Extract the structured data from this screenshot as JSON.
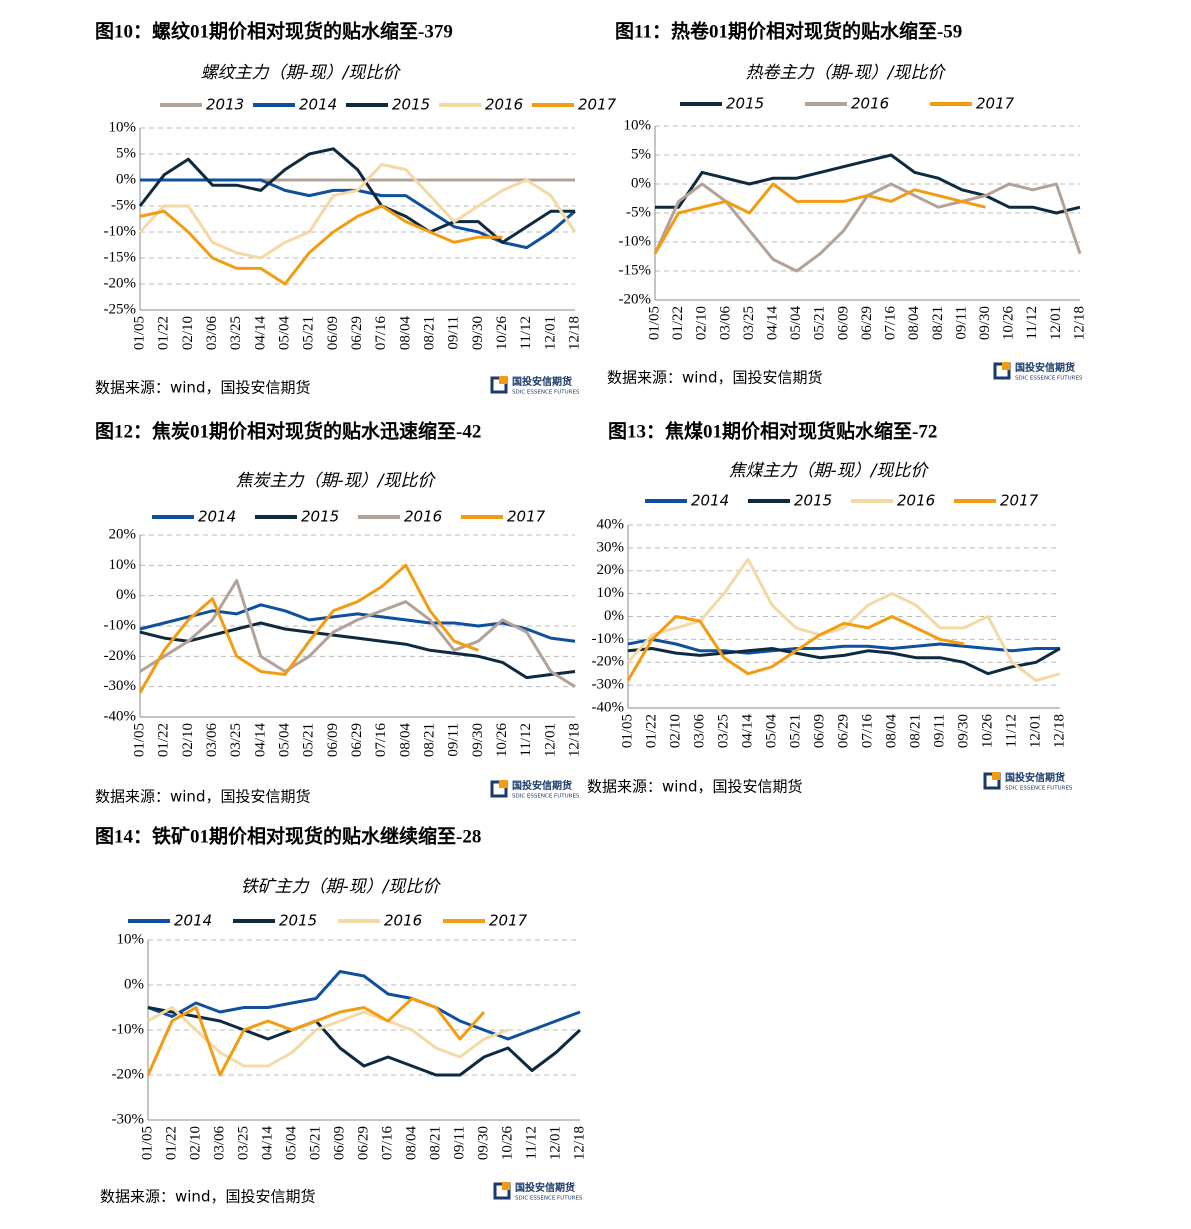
{
  "logo": {
    "name": "国投安信期货",
    "english": "SDIC ESSENCE FUTURES"
  },
  "chart_data": [
    {
      "type": "line",
      "caption": "图10：螺纹01期价相对现货的贴水缩至-379",
      "title": "螺纹主力（期-现）/现比价",
      "source": "数据来源：wind，国投安信期货",
      "categories": [
        "01/05",
        "01/22",
        "02/10",
        "03/06",
        "03/25",
        "04/14",
        "05/04",
        "05/21",
        "06/09",
        "06/29",
        "07/16",
        "08/04",
        "08/21",
        "09/11",
        "09/30",
        "10/26",
        "11/12",
        "12/01",
        "12/18"
      ],
      "ylim": [
        -25,
        10
      ],
      "grid": true,
      "yticks": [
        {
          "value": 10,
          "label": "10%"
        },
        {
          "value": 5,
          "label": "5%"
        },
        {
          "value": 0,
          "label": "0%"
        },
        {
          "value": -5,
          "label": "-5%"
        },
        {
          "value": -10,
          "label": "-10%"
        },
        {
          "value": -15,
          "label": "-15%"
        },
        {
          "value": -20,
          "label": "-20%"
        },
        {
          "value": -25,
          "label": "-25%"
        }
      ],
      "series": [
        {
          "name": "2013",
          "color": "#b3a297",
          "values": [
            0,
            0,
            0,
            0,
            0,
            0,
            0,
            0,
            0,
            0,
            0,
            0,
            0,
            0,
            0,
            0,
            0,
            0,
            0
          ]
        },
        {
          "name": "2014",
          "color": "#0e4f9e",
          "values": [
            0,
            0,
            0,
            0,
            0,
            0,
            -2,
            -3,
            -2,
            -2,
            -3,
            -3,
            -6,
            -9,
            -10,
            -12,
            -13,
            -10,
            -6
          ]
        },
        {
          "name": "2015",
          "color": "#0d2a3f",
          "values": [
            -5,
            1,
            4,
            -1,
            -1,
            -2,
            2,
            5,
            6,
            2,
            -5,
            -7,
            -10,
            -8,
            -8,
            -12,
            -9,
            -6,
            -6
          ]
        },
        {
          "name": "2016",
          "color": "#f3d9a4",
          "values": [
            -10,
            -5,
            -5,
            -12,
            -14,
            -15,
            -12,
            -10,
            -3,
            -2,
            3,
            2,
            -3,
            -8,
            -5,
            -2,
            0,
            -3,
            -10
          ]
        },
        {
          "name": "2017",
          "color": "#f39c12",
          "values": [
            -7,
            -6,
            -10,
            -15,
            -17,
            -17,
            -20,
            -14,
            -10,
            -7,
            -5,
            -8,
            -10,
            -12,
            -11,
            -11,
            null,
            null,
            null
          ]
        }
      ]
    },
    {
      "type": "line",
      "caption": "图11：热卷01期价相对现货的贴水缩至-59",
      "title": "热卷主力（期-现）/现比价",
      "source": "数据来源：wind，国投安信期货",
      "categories": [
        "01/05",
        "01/22",
        "02/10",
        "03/06",
        "03/25",
        "04/14",
        "05/04",
        "05/21",
        "06/09",
        "06/29",
        "07/16",
        "08/04",
        "08/21",
        "09/11",
        "09/30",
        "10/26",
        "11/12",
        "12/01",
        "12/18"
      ],
      "ylim": [
        -20,
        10
      ],
      "grid": true,
      "yticks": [
        {
          "value": 10,
          "label": "10%"
        },
        {
          "value": 5,
          "label": "5%"
        },
        {
          "value": 0,
          "label": "0%"
        },
        {
          "value": -5,
          "label": "-5%"
        },
        {
          "value": -10,
          "label": "-10%"
        },
        {
          "value": -15,
          "label": "-15%"
        },
        {
          "value": -20,
          "label": "-20%"
        }
      ],
      "series": [
        {
          "name": "2015",
          "color": "#0d2a3f",
          "values": [
            -4,
            -4,
            2,
            1,
            0,
            1,
            1,
            2,
            3,
            4,
            5,
            2,
            1,
            -1,
            -2,
            -4,
            -4,
            -5,
            -4
          ]
        },
        {
          "name": "2016",
          "color": "#b3a297",
          "values": [
            -12,
            -3,
            0,
            -3,
            -8,
            -13,
            -15,
            -12,
            -8,
            -2,
            0,
            -2,
            -4,
            -3,
            -2,
            0,
            -1,
            0,
            -12
          ]
        },
        {
          "name": "2017",
          "color": "#f39c12",
          "values": [
            -12,
            -5,
            -4,
            -3,
            -5,
            0,
            -3,
            -3,
            -3,
            -2,
            -3,
            -1,
            -2,
            -3,
            -4,
            null,
            null,
            null,
            null
          ]
        }
      ]
    },
    {
      "type": "line",
      "caption": "图12：焦炭01期价相对现货的贴水迅速缩至-42",
      "title": "焦炭主力（期-现）/现比价",
      "source": "数据来源：wind，国投安信期货",
      "categories": [
        "01/05",
        "01/22",
        "02/10",
        "03/06",
        "03/25",
        "04/14",
        "05/04",
        "05/21",
        "06/09",
        "06/29",
        "07/16",
        "08/04",
        "08/21",
        "09/11",
        "09/30",
        "10/26",
        "11/12",
        "12/01",
        "12/18"
      ],
      "ylim": [
        -40,
        20
      ],
      "grid": true,
      "yticks": [
        {
          "value": 20,
          "label": "20%"
        },
        {
          "value": 10,
          "label": "10%"
        },
        {
          "value": 0,
          "label": "0%"
        },
        {
          "value": -10,
          "label": "-10%"
        },
        {
          "value": -20,
          "label": "-20%"
        },
        {
          "value": -30,
          "label": "-30%"
        },
        {
          "value": -40,
          "label": "-40%"
        }
      ],
      "series": [
        {
          "name": "2014",
          "color": "#0e4f9e",
          "values": [
            -11,
            -9,
            -7,
            -5,
            -6,
            -3,
            -5,
            -8,
            -7,
            -6,
            -7,
            -8,
            -9,
            -9,
            -10,
            -9,
            -11,
            -14,
            -15
          ]
        },
        {
          "name": "2015",
          "color": "#0d2a3f",
          "values": [
            -12,
            -14,
            -15,
            -13,
            -11,
            -9,
            -11,
            -12,
            -13,
            -14,
            -15,
            -16,
            -18,
            -19,
            -20,
            -22,
            -27,
            -26,
            -25
          ]
        },
        {
          "name": "2016",
          "color": "#b3a297",
          "values": [
            -25,
            -20,
            -15,
            -8,
            5,
            -20,
            -25,
            -20,
            -12,
            -8,
            -5,
            -2,
            -8,
            -18,
            -15,
            -8,
            -12,
            -25,
            -30
          ]
        },
        {
          "name": "2017",
          "color": "#f39c12",
          "values": [
            -32,
            -18,
            -8,
            -1,
            -20,
            -25,
            -26,
            -15,
            -5,
            -2,
            3,
            10,
            -5,
            -15,
            -18,
            null,
            null,
            null,
            null
          ]
        }
      ]
    },
    {
      "type": "line",
      "caption": "图13：焦煤01期价相对现货贴水缩至-72",
      "title": "焦煤主力（期-现）/现比价",
      "source": "数据来源：wind，国投安信期货",
      "categories": [
        "01/05",
        "01/22",
        "02/10",
        "03/06",
        "03/25",
        "04/14",
        "05/04",
        "05/21",
        "06/09",
        "06/29",
        "07/16",
        "08/04",
        "08/21",
        "09/11",
        "09/30",
        "10/26",
        "11/12",
        "12/01",
        "12/18"
      ],
      "ylim": [
        -40,
        40
      ],
      "grid": true,
      "yticks": [
        {
          "value": 40,
          "label": "40%"
        },
        {
          "value": 30,
          "label": "30%"
        },
        {
          "value": 20,
          "label": "20%"
        },
        {
          "value": 10,
          "label": "10%"
        },
        {
          "value": 0,
          "label": "0%"
        },
        {
          "value": -10,
          "label": "-10%"
        },
        {
          "value": -20,
          "label": "-20%"
        },
        {
          "value": -30,
          "label": "-30%"
        },
        {
          "value": -40,
          "label": "-40%"
        }
      ],
      "series": [
        {
          "name": "2014",
          "color": "#0e4f9e",
          "values": [
            -12,
            -10,
            -12,
            -15,
            -15,
            -16,
            -15,
            -14,
            -14,
            -13,
            -13,
            -14,
            -13,
            -12,
            -13,
            -14,
            -15,
            -14,
            -14
          ]
        },
        {
          "name": "2015",
          "color": "#0d2a3f",
          "values": [
            -15,
            -14,
            -16,
            -17,
            -16,
            -15,
            -14,
            -16,
            -18,
            -17,
            -15,
            -16,
            -18,
            -18,
            -20,
            -25,
            -22,
            -20,
            -14
          ]
        },
        {
          "name": "2016",
          "color": "#f3d9a4",
          "values": [
            -20,
            -8,
            -5,
            -2,
            10,
            25,
            5,
            -5,
            -8,
            -5,
            5,
            10,
            5,
            -5,
            -5,
            0,
            -20,
            -28,
            -25
          ]
        },
        {
          "name": "2017",
          "color": "#f39c12",
          "values": [
            -28,
            -10,
            0,
            -2,
            -18,
            -25,
            -22,
            -15,
            -8,
            -3,
            -5,
            0,
            -5,
            -10,
            -12,
            null,
            null,
            null,
            null
          ]
        }
      ]
    },
    {
      "type": "line",
      "caption": "图14：铁矿01期价相对现货的贴水继续缩至-28",
      "title": "铁矿主力（期-现）/现比价",
      "source": "数据来源：wind，国投安信期货",
      "categories": [
        "01/05",
        "01/22",
        "02/10",
        "03/06",
        "03/25",
        "04/14",
        "05/04",
        "05/21",
        "06/09",
        "06/29",
        "07/16",
        "08/04",
        "08/21",
        "09/11",
        "09/30",
        "10/26",
        "11/12",
        "12/01",
        "12/18"
      ],
      "ylim": [
        -30,
        10
      ],
      "grid": true,
      "yticks": [
        {
          "value": 10,
          "label": "10%"
        },
        {
          "value": 0,
          "label": "0%"
        },
        {
          "value": -10,
          "label": "-10%"
        },
        {
          "value": -20,
          "label": "-20%"
        },
        {
          "value": -30,
          "label": "-30%"
        }
      ],
      "series": [
        {
          "name": "2014",
          "color": "#0e4f9e",
          "values": [
            -5,
            -7,
            -4,
            -6,
            -5,
            -5,
            -4,
            -3,
            3,
            2,
            -2,
            -3,
            -5,
            -8,
            -10,
            -12,
            -10,
            -8,
            -6
          ]
        },
        {
          "name": "2015",
          "color": "#0d2a3f",
          "values": [
            -5,
            -6,
            -7,
            -8,
            -10,
            -12,
            -10,
            -8,
            -14,
            -18,
            -16,
            -18,
            -20,
            -20,
            -16,
            -14,
            -19,
            -15,
            -10
          ]
        },
        {
          "name": "2016",
          "color": "#f3d9a4",
          "values": [
            -8,
            -5,
            -10,
            -15,
            -18,
            -18,
            -15,
            -10,
            -8,
            -6,
            -8,
            -10,
            -14,
            -16,
            -12,
            -10,
            null,
            null,
            null
          ]
        },
        {
          "name": "2017",
          "color": "#f39c12",
          "values": [
            -20,
            -8,
            -5,
            -20,
            -10,
            -8,
            -10,
            -8,
            -6,
            -5,
            -8,
            -3,
            -5,
            -12,
            -6,
            null,
            null,
            null,
            null
          ]
        }
      ]
    }
  ]
}
